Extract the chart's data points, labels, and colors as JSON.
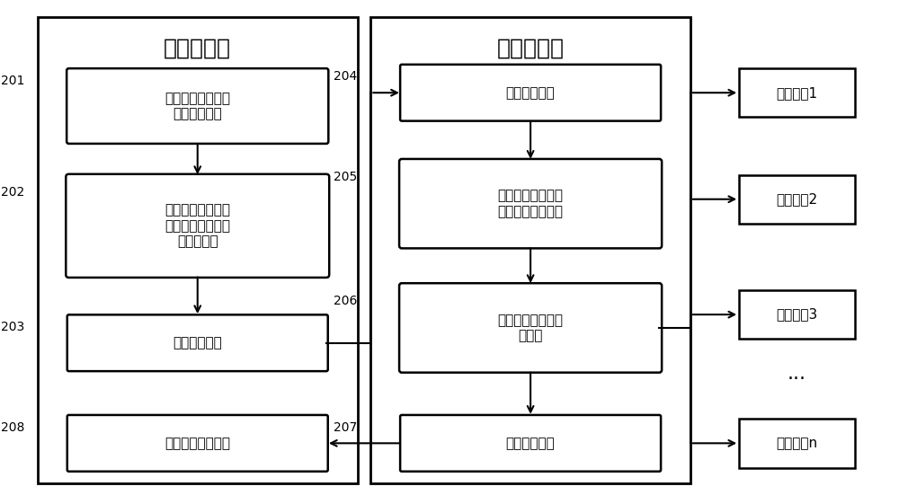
{
  "bg_color": "#ffffff",
  "left_title": "核心服务器",
  "right_title": "核心服务器",
  "left_box1": "采集各个接入服务\n器对应的网段",
  "left_box2": "为每个设备资产扫\n描器配置不同网段\n的扫描任务",
  "left_box3": "下发扫描任务",
  "left_box4": "扫描结果汇总统计",
  "right_box1": "接收扫描任务",
  "right_box2": "获取设备资产扫描\n器需要扫描的网段",
  "right_box3": "设备资产扫描器进\n行扫描",
  "right_box4": "扫描结果上报",
  "asset1": "设备资产1",
  "asset2": "设备资产2",
  "asset3": "设备资产3",
  "asset4": "设备资产n",
  "dots": "···",
  "num201": "201",
  "num202": "202",
  "num203": "203",
  "num204": "204",
  "num205": "205",
  "num206": "206",
  "num207": "207",
  "num208": "208"
}
